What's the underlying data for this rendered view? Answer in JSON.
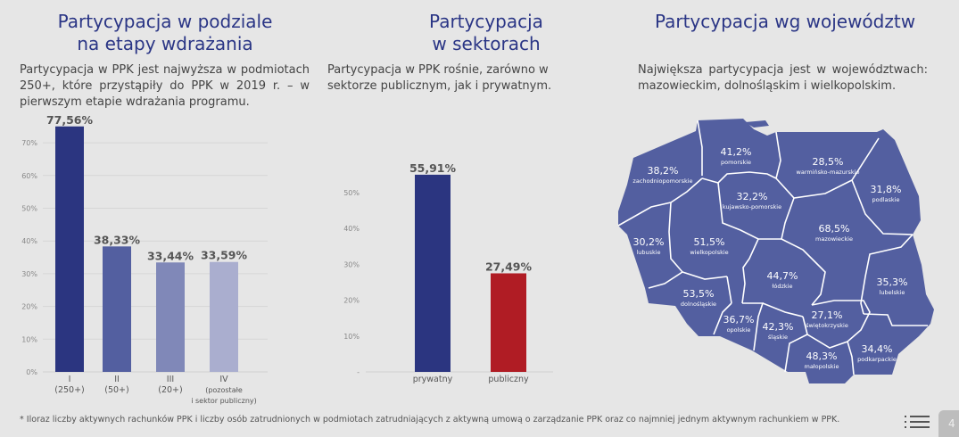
{
  "left": {
    "title_line1": "Partycypacja w podziale",
    "title_line2": "na etapy wdrażania",
    "subtitle": "Partycypacja w PPK jest najwyższa w podmiotach 250+, które przystąpiły do PPK w 2019 r. – w pierwszym etapie wdrażania programu."
  },
  "middle": {
    "title_line1": "Partycypacja",
    "title_line2": "w sektorach",
    "subtitle": "Partycypacja w PPK rośnie, zarówno w sektorze publicznym, jak i prywatnym."
  },
  "right": {
    "title": "Partycypacja wg województw",
    "subtitle": "Największa partycypacja jest w województwach: mazowieckim, dolnośląskim i wielkopolskim.",
    "map_color": "#535fa0"
  },
  "footer": {
    "note": "* Iloraz liczby aktywnych rachunków PPK i liczby osób zatrudnionych w podmiotach zatrudniających z aktywną umową o zarządzanie PPK oraz co najmniej jednym aktywnym rachunkiem w PPK.",
    "page_number": "4",
    "menu_icon": "list-icon"
  },
  "chart_data": [
    {
      "type": "bar",
      "title": "",
      "ylim": [
        0,
        75
      ],
      "yticks": [
        "0%",
        "10%",
        "20%",
        "30%",
        "40%",
        "50%",
        "60%",
        "70%"
      ],
      "grid": true,
      "categories": [
        [
          "I",
          "(250+)"
        ],
        [
          "II",
          "(50+)"
        ],
        [
          "III",
          "(20+)"
        ],
        [
          "IV",
          "(pozostałe",
          "i sektor publiczny)"
        ]
      ],
      "values": [
        77.56,
        38.33,
        33.44,
        33.59
      ],
      "labels": [
        "77,56%",
        "38,33%",
        "33,44%",
        "33,59%"
      ],
      "colors": [
        "#2b3580",
        "#535fa0",
        "#8088b8",
        "#aaaecf"
      ]
    },
    {
      "type": "bar",
      "title": "",
      "ylim": [
        0,
        55
      ],
      "yticks": [
        "-",
        "10%",
        "20%",
        "30%",
        "40%",
        "50%"
      ],
      "grid": false,
      "categories": [
        [
          "prywatny"
        ],
        [
          "publiczny"
        ]
      ],
      "values": [
        55.91,
        27.49
      ],
      "labels": [
        "55,91%",
        "27,49%"
      ],
      "colors": [
        "#2b3580",
        "#b01c24"
      ]
    },
    {
      "type": "map",
      "regions": [
        {
          "name": "zachodniopomorskie",
          "value": "38,2%"
        },
        {
          "name": "pomorskie",
          "value": "41,2%"
        },
        {
          "name": "warmińsko-mazurskie",
          "value": "28,5%"
        },
        {
          "name": "podlaskie",
          "value": "31,8%"
        },
        {
          "name": "kujawsko-pomorskie",
          "value": "32,2%"
        },
        {
          "name": "mazowieckie",
          "value": "68,5%"
        },
        {
          "name": "lubuskie",
          "value": "30,2%"
        },
        {
          "name": "wielkopolskie",
          "value": "51,5%"
        },
        {
          "name": "łódzkie",
          "value": "44,7%"
        },
        {
          "name": "lubelskie",
          "value": "35,3%"
        },
        {
          "name": "dolnośląskie",
          "value": "53,5%"
        },
        {
          "name": "opolskie",
          "value": "36,7%"
        },
        {
          "name": "śląskie",
          "value": "42,3%"
        },
        {
          "name": "świętokrzyskie",
          "value": "27,1%"
        },
        {
          "name": "małopolskie",
          "value": "48,3%"
        },
        {
          "name": "podkarpackie",
          "value": "34,4%"
        }
      ]
    }
  ]
}
